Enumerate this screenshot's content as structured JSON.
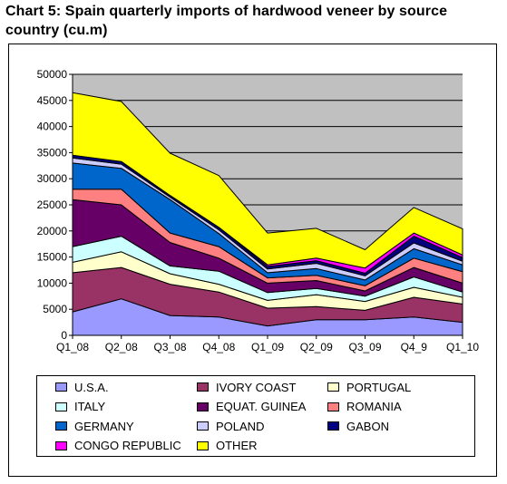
{
  "title": "Chart 5: Spain quarterly imports of hardwood veneer by source country (cu.m)",
  "chart_data": {
    "type": "area",
    "stacked": true,
    "categories": [
      "Q1_08",
      "Q2_08",
      "Q3_08",
      "Q4_08",
      "Q1_09",
      "Q2_09",
      "Q3_09",
      "Q4_9",
      "Q1_10"
    ],
    "ylim": [
      0,
      50000
    ],
    "yticks": [
      0,
      5000,
      10000,
      15000,
      20000,
      25000,
      30000,
      35000,
      40000,
      45000,
      50000
    ],
    "grid": true,
    "legend_position": "bottom",
    "plot_background": "#c0c0c0",
    "series": [
      {
        "name": "U.S.A.",
        "color": "#9999ff",
        "values": [
          4500,
          7000,
          3800,
          3500,
          1800,
          3000,
          3000,
          3500,
          2500
        ]
      },
      {
        "name": "IVORY COAST",
        "color": "#993366",
        "values": [
          7500,
          6000,
          6000,
          4800,
          3400,
          2500,
          1800,
          3800,
          3500
        ]
      },
      {
        "name": "PORTUGAL",
        "color": "#ffffcc",
        "values": [
          2000,
          3000,
          2000,
          1500,
          1500,
          2300,
          1700,
          1900,
          1300
        ]
      },
      {
        "name": "ITALY",
        "color": "#ccffff",
        "values": [
          3000,
          3000,
          1500,
          2500,
          1500,
          1200,
          1000,
          2000,
          1000
        ]
      },
      {
        "name": "EQUAT. GUINEA",
        "color": "#660066",
        "values": [
          9000,
          6000,
          4500,
          2500,
          1800,
          1500,
          1000,
          1800,
          1700
        ]
      },
      {
        "name": "ROMANIA",
        "color": "#ff8080",
        "values": [
          2000,
          3000,
          1800,
          2200,
          1000,
          1000,
          1000,
          1800,
          2200
        ]
      },
      {
        "name": "GERMANY",
        "color": "#0066cc",
        "values": [
          5000,
          4000,
          6400,
          2500,
          1000,
          1300,
          1100,
          1800,
          1300
        ]
      },
      {
        "name": "POLAND",
        "color": "#ccccff",
        "values": [
          1000,
          800,
          500,
          700,
          700,
          1000,
          800,
          1100,
          700
        ]
      },
      {
        "name": "GABON",
        "color": "#000080",
        "values": [
          500,
          500,
          300,
          500,
          500,
          500,
          500,
          1300,
          700
        ]
      },
      {
        "name": "CONGO REPUBLIC",
        "color": "#ff00ff",
        "values": [
          0,
          0,
          0,
          0,
          300,
          500,
          1000,
          600,
          500
        ]
      },
      {
        "name": "OTHER",
        "color": "#ffff00",
        "values": [
          12000,
          11500,
          8100,
          9900,
          6100,
          5700,
          3500,
          4900,
          5000
        ]
      }
    ]
  }
}
